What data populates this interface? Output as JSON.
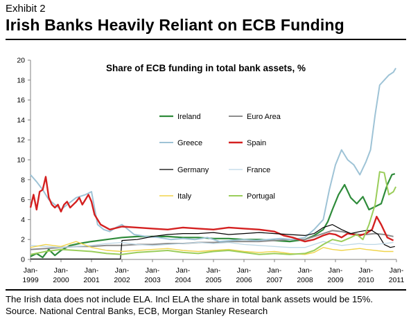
{
  "header": {
    "exhibit": "Exhibit 2",
    "title": "Irish Banks Heavily Reliant on ECB Funding"
  },
  "footer": {
    "note": "The Irish data does not include ELA. Incl ELA the share in total bank assets would be 15%.",
    "source": "Source. National Central Banks, ECB, Morgan Stanley Research"
  },
  "chart_data": {
    "type": "line",
    "title": "Share of ECB funding in total bank assets, %",
    "xlabel": "",
    "ylabel": "",
    "ylim": [
      0,
      20
    ],
    "yticks": [
      "0",
      "2",
      "4",
      "6",
      "8",
      "10",
      "12",
      "14",
      "16",
      "18",
      "20"
    ],
    "xlim": [
      1999.0,
      2011.0
    ],
    "xticks": [
      {
        "top": "Jan-",
        "bottom": "1999"
      },
      {
        "top": "Jan-",
        "bottom": "2000"
      },
      {
        "top": "Jan-",
        "bottom": "2001"
      },
      {
        "top": "Jan-",
        "bottom": "2002"
      },
      {
        "top": "Jan-",
        "bottom": "2003"
      },
      {
        "top": "Jan-",
        "bottom": "2004"
      },
      {
        "top": "Jan-",
        "bottom": "2005"
      },
      {
        "top": "Jan-",
        "bottom": "2006"
      },
      {
        "top": "Jan-",
        "bottom": "2007"
      },
      {
        "top": "Jan-",
        "bottom": "2008"
      },
      {
        "top": "Jan-",
        "bottom": "2009"
      },
      {
        "top": "Jan-",
        "bottom": "2010"
      },
      {
        "top": "Jan-",
        "bottom": "2011"
      }
    ],
    "grid": false,
    "legend_position": "upper-middle",
    "series": [
      {
        "name": "Ireland",
        "color": "#2e8b3a",
        "width": 2.2,
        "x": [
          1999.0,
          1999.2,
          1999.4,
          1999.6,
          1999.8,
          2000.0,
          2000.3,
          2000.6,
          2001.0,
          2001.5,
          2002.0,
          2002.5,
          2003.0,
          2003.5,
          2004.0,
          2004.5,
          2005.0,
          2005.5,
          2006.0,
          2006.5,
          2007.0,
          2007.5,
          2008.0,
          2008.3,
          2008.6,
          2008.75,
          2008.9,
          2009.1,
          2009.3,
          2009.5,
          2009.7,
          2009.9,
          2010.1,
          2010.3,
          2010.5,
          2010.7,
          2010.85,
          2010.95
        ],
        "y": [
          0.3,
          0.6,
          0.2,
          1.0,
          0.4,
          0.9,
          1.4,
          1.6,
          1.8,
          2.0,
          2.2,
          2.3,
          2.3,
          2.3,
          2.2,
          2.2,
          2.1,
          2.1,
          2.0,
          2.0,
          1.9,
          1.8,
          2.0,
          2.4,
          3.0,
          3.8,
          5.0,
          6.5,
          7.5,
          6.2,
          5.6,
          6.3,
          5.0,
          5.3,
          5.6,
          7.5,
          8.5,
          8.6
        ]
      },
      {
        "name": "Euro Area",
        "color": "#8c8c8c",
        "width": 2.0,
        "x": [
          1999.0,
          1999.5,
          2000.0,
          2000.5,
          2001.0,
          2001.5,
          2002.0,
          2002.5,
          2003.0,
          2003.5,
          2004.0,
          2004.5,
          2005.0,
          2005.5,
          2006.0,
          2006.5,
          2007.0,
          2007.5,
          2008.0,
          2008.3,
          2008.6,
          2008.9,
          2009.2,
          2009.5,
          2009.8,
          2010.0,
          2010.3,
          2010.6,
          2010.9
        ],
        "y": [
          1.0,
          1.1,
          1.2,
          1.3,
          1.3,
          1.4,
          1.4,
          1.5,
          1.5,
          1.6,
          1.6,
          1.7,
          1.7,
          1.8,
          1.8,
          1.8,
          1.9,
          2.0,
          2.0,
          2.3,
          2.6,
          2.9,
          2.8,
          2.6,
          2.5,
          2.5,
          2.6,
          2.5,
          2.3
        ]
      },
      {
        "name": "Greece",
        "color": "#9ec3d6",
        "width": 2.0,
        "x": [
          1999.0,
          1999.2,
          1999.4,
          1999.6,
          1999.8,
          2000.0,
          2000.2,
          2000.5,
          2000.8,
          2001.0,
          2001.2,
          2001.4,
          2001.6,
          2001.8,
          2002.0,
          2002.4,
          2002.8,
          2003.2,
          2003.6,
          2004.0,
          2004.4,
          2004.8,
          2005.2,
          2005.6,
          2006.0,
          2006.4,
          2006.8,
          2007.2,
          2007.6,
          2008.0,
          2008.3,
          2008.6,
          2008.8,
          2009.0,
          2009.2,
          2009.4,
          2009.6,
          2009.8,
          2010.0,
          2010.15,
          2010.3,
          2010.45,
          2010.6,
          2010.75,
          2010.9,
          2010.98
        ],
        "y": [
          8.5,
          7.8,
          7.0,
          6.0,
          5.5,
          5.0,
          5.5,
          6.2,
          6.5,
          6.8,
          3.5,
          3.0,
          2.8,
          3.2,
          3.5,
          2.5,
          2.3,
          2.2,
          2.0,
          2.1,
          2.0,
          2.2,
          1.8,
          1.9,
          2.0,
          1.9,
          2.0,
          2.1,
          2.0,
          2.2,
          3.0,
          4.0,
          7.0,
          9.5,
          11.0,
          10.0,
          9.5,
          8.5,
          9.8,
          11.0,
          14.5,
          17.5,
          18.0,
          18.5,
          18.8,
          19.2
        ]
      },
      {
        "name": "Spain",
        "color": "#d42020",
        "width": 2.4,
        "x": [
          1999.0,
          1999.1,
          1999.2,
          1999.3,
          1999.4,
          1999.5,
          1999.6,
          1999.7,
          1999.8,
          1999.9,
          2000.0,
          2000.1,
          2000.2,
          2000.3,
          2000.4,
          2000.5,
          2000.6,
          2000.7,
          2000.8,
          2000.9,
          2001.0,
          2001.1,
          2001.3,
          2001.6,
          2002.0,
          2002.5,
          2003.0,
          2003.5,
          2004.0,
          2004.5,
          2005.0,
          2005.5,
          2006.0,
          2006.5,
          2007.0,
          2007.3,
          2007.6,
          2008.0,
          2008.3,
          2008.6,
          2008.8,
          2009.0,
          2009.2,
          2009.4,
          2009.6,
          2009.8,
          2010.0,
          2010.2,
          2010.35,
          2010.5,
          2010.7,
          2010.9
        ],
        "y": [
          5.2,
          6.5,
          5.0,
          6.8,
          7.0,
          8.3,
          6.2,
          5.5,
          5.2,
          5.5,
          4.8,
          5.5,
          5.8,
          5.2,
          5.5,
          5.8,
          6.2,
          5.5,
          6.0,
          6.5,
          5.8,
          4.5,
          3.5,
          3.0,
          3.3,
          3.2,
          3.1,
          3.0,
          3.2,
          3.1,
          3.0,
          3.2,
          3.1,
          3.0,
          2.8,
          2.4,
          2.2,
          1.8,
          2.0,
          2.4,
          2.6,
          2.5,
          2.2,
          2.6,
          2.5,
          2.4,
          2.6,
          3.0,
          4.3,
          3.5,
          2.2,
          1.9
        ]
      },
      {
        "name": "Germany",
        "color": "#000000",
        "width": 1.2,
        "x": [
          1999.0,
          2000.0,
          2001.0,
          2001.5,
          2001.95,
          2002.0,
          2002.5,
          2003.0,
          2003.5,
          2004.0,
          2004.5,
          2005.0,
          2005.5,
          2006.0,
          2006.5,
          2007.0,
          2007.5,
          2008.0,
          2008.3,
          2008.6,
          2008.9,
          2009.2,
          2009.5,
          2009.8,
          2010.0,
          2010.2,
          2010.4,
          2010.6,
          2010.8,
          2010.95
        ],
        "y": [
          0.05,
          0.05,
          0.05,
          0.05,
          0.05,
          1.9,
          2.0,
          2.3,
          2.5,
          2.6,
          2.6,
          2.7,
          2.5,
          2.6,
          2.7,
          2.6,
          2.5,
          2.4,
          2.6,
          3.2,
          3.5,
          3.0,
          2.6,
          2.8,
          2.9,
          2.9,
          2.5,
          1.5,
          1.2,
          1.3
        ]
      },
      {
        "name": "France",
        "color": "#bcd7e6",
        "width": 1.3,
        "x": [
          1999.0,
          1999.5,
          2000.0,
          2000.5,
          2001.0,
          2001.5,
          2002.0,
          2002.5,
          2003.0,
          2003.5,
          2004.0,
          2004.5,
          2005.0,
          2005.5,
          2006.0,
          2006.5,
          2007.0,
          2007.5,
          2008.0,
          2008.3,
          2008.6,
          2008.9,
          2009.2,
          2009.5,
          2009.8,
          2010.0,
          2010.3,
          2010.6,
          2010.9
        ],
        "y": [
          1.4,
          1.3,
          1.2,
          1.3,
          1.4,
          1.6,
          1.7,
          1.5,
          1.4,
          1.5,
          1.6,
          1.7,
          1.6,
          1.7,
          1.5,
          1.4,
          1.3,
          1.2,
          1.2,
          1.5,
          1.8,
          1.6,
          1.4,
          1.5,
          1.6,
          1.5,
          1.5,
          1.6,
          1.7
        ]
      },
      {
        "name": "Italy",
        "color": "#f0d44a",
        "width": 1.4,
        "x": [
          1999.0,
          1999.5,
          2000.0,
          2000.5,
          2001.0,
          2001.5,
          2002.0,
          2002.5,
          2003.0,
          2003.5,
          2004.0,
          2004.5,
          2005.0,
          2005.5,
          2006.0,
          2006.5,
          2007.0,
          2007.5,
          2008.0,
          2008.3,
          2008.6,
          2008.9,
          2009.2,
          2009.5,
          2009.8,
          2010.0,
          2010.3,
          2010.6,
          2010.9
        ],
        "y": [
          1.2,
          1.5,
          1.3,
          1.8,
          1.2,
          0.9,
          0.8,
          0.9,
          1.0,
          1.1,
          0.9,
          0.8,
          0.9,
          1.0,
          0.8,
          0.7,
          0.8,
          0.6,
          0.5,
          0.7,
          1.2,
          1.0,
          0.9,
          1.0,
          1.1,
          1.0,
          0.9,
          0.8,
          0.8
        ]
      },
      {
        "name": "Portugal",
        "color": "#9acd5a",
        "width": 2.0,
        "x": [
          1999.0,
          1999.5,
          2000.0,
          2000.5,
          2001.0,
          2001.5,
          2002.0,
          2002.5,
          2003.0,
          2003.5,
          2004.0,
          2004.5,
          2005.0,
          2005.5,
          2006.0,
          2006.5,
          2007.0,
          2007.5,
          2008.0,
          2008.3,
          2008.6,
          2008.9,
          2009.2,
          2009.5,
          2009.7,
          2009.9,
          2010.1,
          2010.3,
          2010.45,
          2010.6,
          2010.75,
          2010.9,
          2010.98
        ],
        "y": [
          0.5,
          0.8,
          1.0,
          0.9,
          0.8,
          0.6,
          0.5,
          0.7,
          0.8,
          0.9,
          0.7,
          0.6,
          0.8,
          0.9,
          0.7,
          0.5,
          0.6,
          0.5,
          0.6,
          0.9,
          1.5,
          2.0,
          1.8,
          2.2,
          2.5,
          2.0,
          3.5,
          5.5,
          8.8,
          8.7,
          6.5,
          6.8,
          7.3
        ]
      }
    ]
  }
}
